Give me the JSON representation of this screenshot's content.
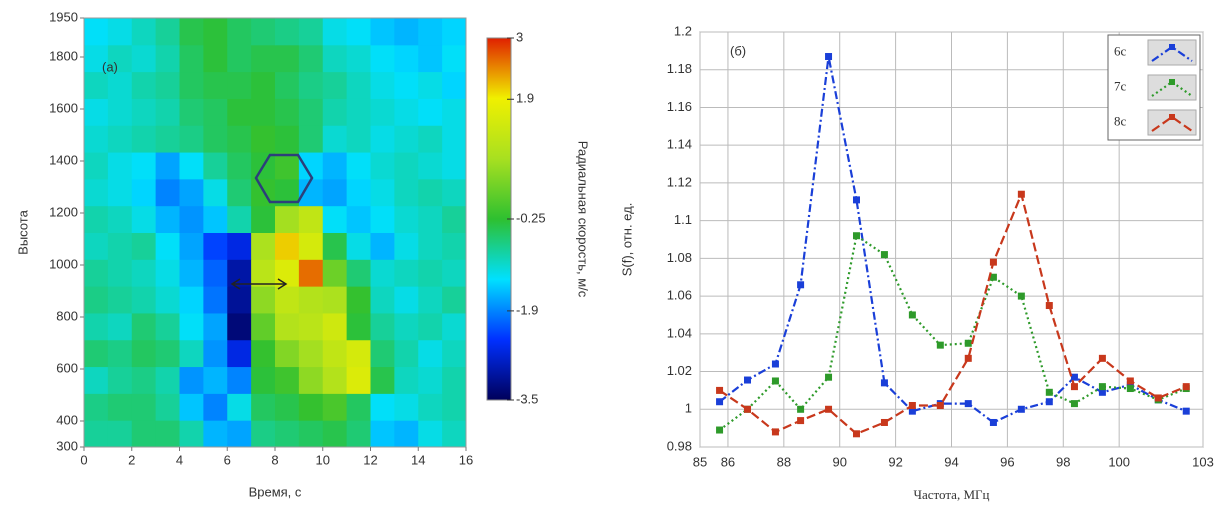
{
  "chart_data": [
    {
      "type": "heatmap",
      "annotation": "(a)",
      "xlabel": "Время, с",
      "ylabel": "Высота",
      "colorbar_label": "Радиальная скорость, м/с",
      "xlim": [
        0,
        16
      ],
      "xticks": [
        0,
        2,
        4,
        6,
        8,
        10,
        12,
        14,
        16
      ],
      "ylim": [
        300,
        1950
      ],
      "yticks": [
        300,
        400,
        600,
        800,
        1000,
        1200,
        1400,
        1600,
        1800,
        1950
      ],
      "clim": [
        -3.5,
        3
      ],
      "cticks": [
        3,
        1.9,
        -0.25,
        -1.9,
        -3.5
      ],
      "colormap": [
        "#00005a",
        "#0030ff",
        "#00e0ff",
        "#2ec030",
        "#a8e020",
        "#f0f000",
        "#e02000"
      ],
      "z": [
        [
          -0.8,
          -0.8,
          -0.6,
          -0.6,
          -0.9,
          -1.6,
          -1.7,
          -0.7,
          -0.6,
          -0.5,
          -0.4,
          -0.6,
          -1.5,
          -1.6,
          -1.2,
          -1.0
        ],
        [
          -0.7,
          -0.6,
          -0.6,
          -0.8,
          -1.5,
          -1.9,
          -1.2,
          -0.5,
          -0.4,
          -0.2,
          0.0,
          -0.5,
          -1.3,
          -1.2,
          -1.0,
          -0.9
        ],
        [
          -1.0,
          -0.8,
          -0.7,
          -0.9,
          -1.8,
          -1.6,
          -1.9,
          -0.3,
          -0.1,
          0.6,
          1.0,
          1.6,
          -0.4,
          -1.0,
          -1.1,
          -0.9
        ],
        [
          -0.6,
          -0.7,
          -0.5,
          -0.6,
          -1.0,
          -1.8,
          -2.6,
          -0.2,
          0.5,
          0.8,
          1.2,
          1.5,
          -0.6,
          -0.9,
          -1.2,
          -1.0
        ],
        [
          -0.9,
          -1.0,
          -0.6,
          -0.8,
          -1.3,
          -1.7,
          -3.3,
          0.2,
          1.0,
          1.1,
          1.4,
          -0.3,
          -0.8,
          -1.0,
          -0.9,
          -1.1
        ],
        [
          -0.7,
          -0.8,
          -0.9,
          -1.1,
          -1.4,
          -2.0,
          -3.1,
          0.6,
          1.2,
          1.0,
          0.9,
          -0.2,
          -1.0,
          -1.2,
          -1.0,
          -0.8
        ],
        [
          -0.8,
          -0.9,
          -1.0,
          -1.2,
          -1.6,
          -2.1,
          -3.0,
          1.1,
          1.6,
          2.6,
          0.3,
          -0.6,
          -1.1,
          -1.0,
          -0.9,
          -1.0
        ],
        [
          -1.0,
          -0.9,
          -0.8,
          -1.3,
          -1.7,
          -2.3,
          -2.6,
          0.9,
          2.1,
          1.5,
          -0.4,
          -1.2,
          -1.6,
          -1.2,
          -1.0,
          -0.9
        ],
        [
          -0.9,
          -1.0,
          -1.2,
          -1.6,
          -1.8,
          -1.5,
          -0.9,
          -0.3,
          0.8,
          1.2,
          -1.3,
          -1.5,
          -1.3,
          -1.1,
          -1.0,
          -0.8
        ],
        [
          -1.1,
          -1.2,
          -1.4,
          -1.9,
          -1.7,
          -1.2,
          -0.6,
          -0.2,
          -0.3,
          -1.6,
          -1.7,
          -1.4,
          -1.2,
          -1.0,
          -0.9,
          -1.0
        ],
        [
          -1.0,
          -1.2,
          -1.3,
          -1.7,
          -1.3,
          -0.8,
          -0.5,
          -0.3,
          -0.1,
          -1.4,
          -1.6,
          -1.3,
          -1.1,
          -1.0,
          -1.1,
          -1.2
        ],
        [
          -1.1,
          -1.0,
          -0.9,
          -0.8,
          -0.7,
          -0.5,
          -0.4,
          -0.2,
          -0.3,
          -0.6,
          -1.1,
          -1.0,
          -1.2,
          -1.1,
          -1.0,
          -1.2
        ],
        [
          -1.2,
          -1.1,
          -1.0,
          -0.9,
          -0.6,
          -0.5,
          -0.3,
          -0.3,
          -0.4,
          -0.6,
          -0.9,
          -1.0,
          -1.1,
          -1.2,
          -1.3,
          -1.2
        ],
        [
          -1.0,
          -1.1,
          -0.9,
          -0.8,
          -0.5,
          -0.4,
          -0.4,
          -0.3,
          -0.5,
          -0.7,
          -0.8,
          -1.0,
          -1.2,
          -1.3,
          -1.2,
          -1.4
        ],
        [
          -1.2,
          -1.0,
          -1.1,
          -0.9,
          -0.5,
          -0.3,
          -0.5,
          -0.4,
          -0.4,
          -0.6,
          -1.0,
          -1.1,
          -1.3,
          -1.4,
          -1.5,
          -1.3
        ],
        [
          -1.3,
          -1.2,
          -1.0,
          -0.8,
          -0.4,
          -0.3,
          -0.5,
          -0.6,
          -0.7,
          -0.8,
          -1.2,
          -1.3,
          -1.5,
          -1.6,
          -1.5,
          -1.4
        ]
      ]
    },
    {
      "type": "line",
      "annotation": "(б)",
      "xlabel": "Частота, МГц",
      "ylabel": "S(f), отн. ед.",
      "xlim": [
        85,
        103
      ],
      "xticks": [
        85,
        86,
        88,
        90,
        92,
        94,
        96,
        98,
        100,
        103
      ],
      "ylim": [
        0.98,
        1.2
      ],
      "yticks": [
        0.98,
        1,
        1.02,
        1.04,
        1.06,
        1.08,
        1.1,
        1.12,
        1.14,
        1.16,
        1.18,
        1.2
      ],
      "grid": true,
      "legend": "upper right",
      "x": [
        85.7,
        86.7,
        87.7,
        88.6,
        89.6,
        90.6,
        91.6,
        92.6,
        93.6,
        94.6,
        95.5,
        96.5,
        97.5,
        98.4,
        99.4,
        100.4,
        101.4,
        102.4
      ],
      "series": [
        {
          "name": "6с",
          "color": "#1a3fd8",
          "dash": "8 3 2 3",
          "values": [
            1.004,
            1.0155,
            1.024,
            1.066,
            1.187,
            1.111,
            1.014,
            0.999,
            1.003,
            1.003,
            0.993,
            1.0,
            1.004,
            1.017,
            1.009,
            1.013,
            1.005,
            0.999
          ]
        },
        {
          "name": "7с",
          "color": "#2e9a2a",
          "dash": "2 3",
          "values": [
            0.989,
            1.0,
            1.015,
            1.0,
            1.017,
            1.092,
            1.082,
            1.05,
            1.034,
            1.035,
            1.07,
            1.06,
            1.009,
            1.003,
            1.012,
            1.011,
            1.005,
            1.011
          ]
        },
        {
          "name": "8с",
          "color": "#c8381c",
          "dash": "9 4",
          "values": [
            1.01,
            1.0,
            0.988,
            0.994,
            1.0,
            0.987,
            0.993,
            1.002,
            1.002,
            1.027,
            1.078,
            1.114,
            1.055,
            1.012,
            1.027,
            1.015,
            1.006,
            1.012
          ]
        }
      ]
    }
  ]
}
